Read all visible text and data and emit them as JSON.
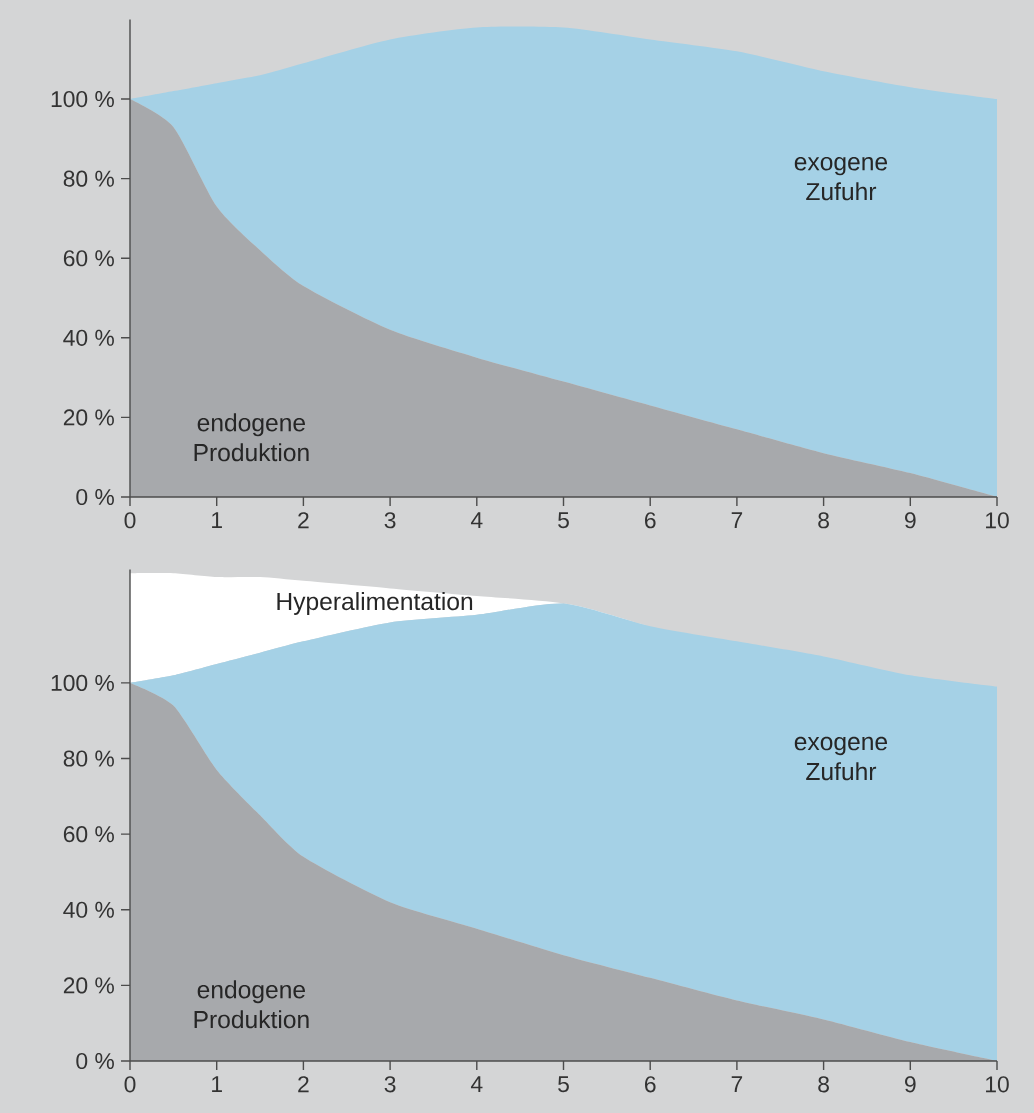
{
  "chart_data": [
    {
      "type": "area",
      "stacked": true,
      "x": [
        0,
        0.5,
        1,
        1.5,
        2,
        3,
        4,
        5,
        6,
        7,
        8,
        9,
        10
      ],
      "xlim": [
        0,
        10
      ],
      "ylim": [
        0,
        120
      ],
      "xticks": [
        0,
        1,
        2,
        3,
        4,
        5,
        6,
        7,
        8,
        9,
        10
      ],
      "yticks": [
        {
          "value": 0,
          "label": "0 %"
        },
        {
          "value": 20,
          "label": "20 %"
        },
        {
          "value": 40,
          "label": "40 %"
        },
        {
          "value": 60,
          "label": "60 %"
        },
        {
          "value": 80,
          "label": "80 %"
        },
        {
          "value": 100,
          "label": "100 %"
        }
      ],
      "series": [
        {
          "name": "endogene Produktion",
          "color": "#a7a9ac",
          "values": [
            100,
            93,
            73,
            62,
            53,
            42,
            35,
            29,
            23,
            17,
            11,
            6,
            0
          ]
        },
        {
          "name": "exogene Zufuhr",
          "color": "#a5d1e6",
          "values": [
            0,
            9,
            31,
            44,
            56,
            73,
            83,
            89,
            92,
            95,
            96,
            97,
            100
          ]
        }
      ]
    },
    {
      "type": "area",
      "stacked": true,
      "x": [
        0,
        0.5,
        1,
        1.5,
        2,
        3,
        4,
        5,
        6,
        7,
        8,
        9,
        10
      ],
      "xlim": [
        0,
        10
      ],
      "ylim": [
        0,
        130
      ],
      "xticks": [
        0,
        1,
        2,
        3,
        4,
        5,
        6,
        7,
        8,
        9,
        10
      ],
      "yticks": [
        {
          "value": 0,
          "label": "0 %"
        },
        {
          "value": 20,
          "label": "20 %"
        },
        {
          "value": 40,
          "label": "40 %"
        },
        {
          "value": 60,
          "label": "60 %"
        },
        {
          "value": 80,
          "label": "80 %"
        },
        {
          "value": 100,
          "label": "100 %"
        }
      ],
      "series": [
        {
          "name": "endogene Produktion",
          "color": "#a7a9ac",
          "values": [
            100,
            94,
            77,
            65,
            54,
            42,
            35,
            28,
            22,
            16,
            11,
            5,
            0
          ]
        },
        {
          "name": "exogene Zufuhr",
          "color": "#a5d1e6",
          "values": [
            0,
            8,
            28,
            43,
            57,
            74,
            83,
            93,
            93,
            95,
            96,
            97,
            99
          ]
        },
        {
          "name": "Hyperalimentation",
          "color": "#ffffff",
          "values": [
            29,
            27,
            23,
            20,
            16,
            9,
            5,
            0,
            0,
            0,
            0,
            0,
            0
          ]
        }
      ]
    }
  ]
}
